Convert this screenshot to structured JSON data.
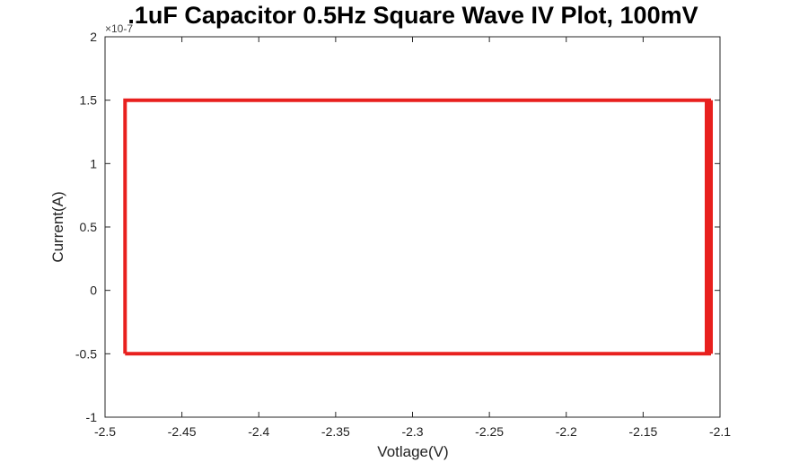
{
  "chart_data": {
    "type": "line",
    "title": ".1uF Capacitor 0.5Hz Square Wave IV Plot, 100mV",
    "xlabel": "Votlage(V)",
    "ylabel": "Current(A)",
    "y_exponent_label": "×10-7",
    "xlim": [
      -2.5,
      -2.1
    ],
    "ylim": [
      -1,
      2
    ],
    "grid": false,
    "x_ticks": [
      -2.5,
      -2.45,
      -2.4,
      -2.35,
      -2.3,
      -2.25,
      -2.2,
      -2.15,
      -2.1
    ],
    "x_tick_labels": [
      "-2.5",
      "-2.45",
      "-2.4",
      "-2.35",
      "-2.3",
      "-2.25",
      "-2.2",
      "-2.15",
      "-2.1"
    ],
    "y_ticks": [
      -1,
      -0.5,
      0,
      0.5,
      1,
      1.5,
      2
    ],
    "y_tick_labels": [
      "-1",
      "-0.5",
      "0",
      "0.5",
      "1",
      "1.5",
      "2"
    ],
    "series": [
      {
        "color": "#e8201e",
        "x": [
          -2.487,
          -2.487,
          -2.107,
          -2.107,
          -2.487
        ],
        "y": [
          -0.5,
          1.5,
          1.5,
          -0.5,
          -0.5
        ]
      }
    ]
  }
}
